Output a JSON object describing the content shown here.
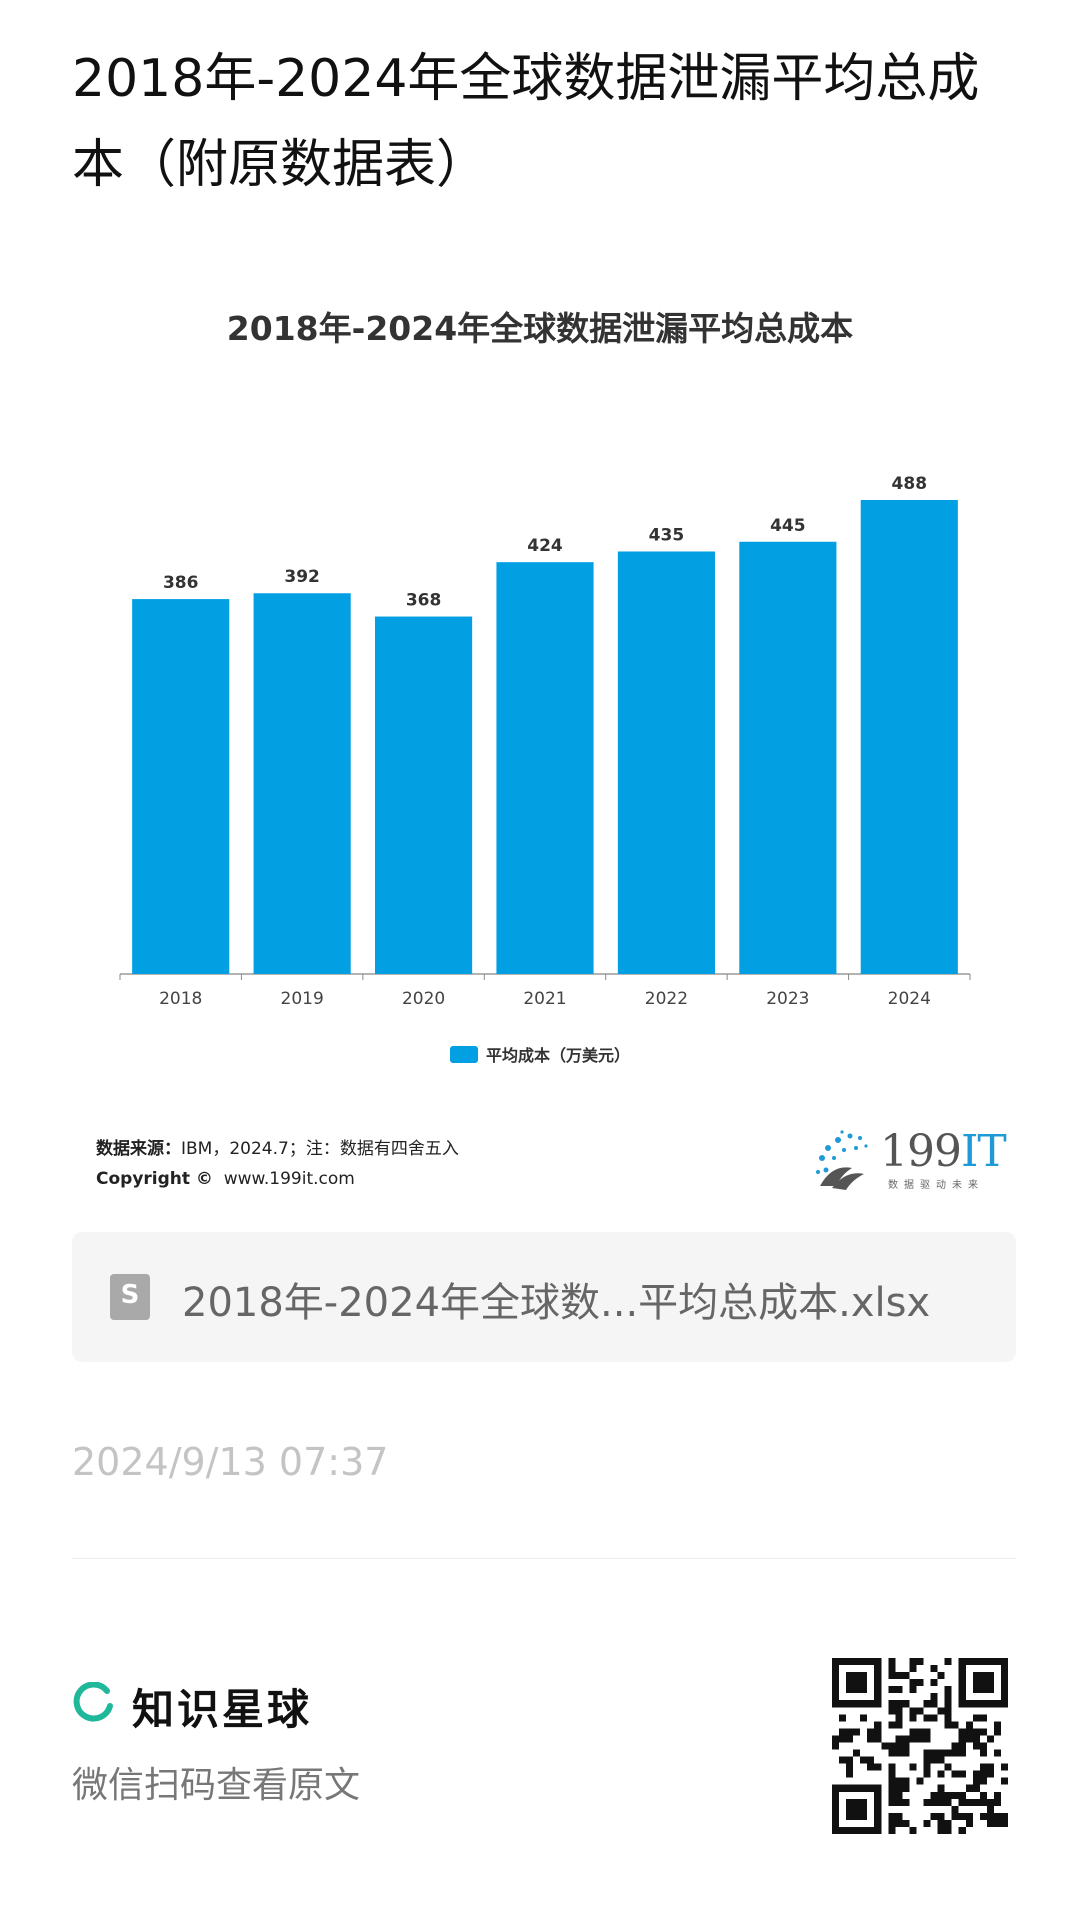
{
  "page": {
    "title": "2018年-2024年全球数据泄漏平均总成本（附原数据表）"
  },
  "chart_data": {
    "type": "bar",
    "title": "2018年-2024年全球数据泄漏平均总成本",
    "categories": [
      "2018",
      "2019",
      "2020",
      "2021",
      "2022",
      "2023",
      "2024"
    ],
    "series": [
      {
        "name": "平均成本（万美元）",
        "values": [
          386,
          392,
          368,
          424,
          435,
          445,
          488
        ]
      }
    ],
    "ylim": [
      0,
      488
    ],
    "grid": false,
    "legend_position": "bottom-center",
    "bar_color": "#039fe3",
    "data_labels": true
  },
  "source": {
    "label": "数据来源：",
    "text": "IBM，2024.7；注：数据有四舍五入",
    "copyright_label": "Copyright ©",
    "site": "www.199it.com"
  },
  "brand": {
    "logo_main": "199",
    "logo_accent": "IT",
    "tagline": "数据驱动未来"
  },
  "attachment": {
    "icon": "spreadsheet-file-icon",
    "icon_letter": "S",
    "file_name": "2018年-2024年全球数...平均总成本.xlsx"
  },
  "timestamp": "2024/9/13 07:37",
  "footer": {
    "app_name": "知识星球",
    "hint": "微信扫码查看原文",
    "accent_color": "#1fb89a"
  }
}
